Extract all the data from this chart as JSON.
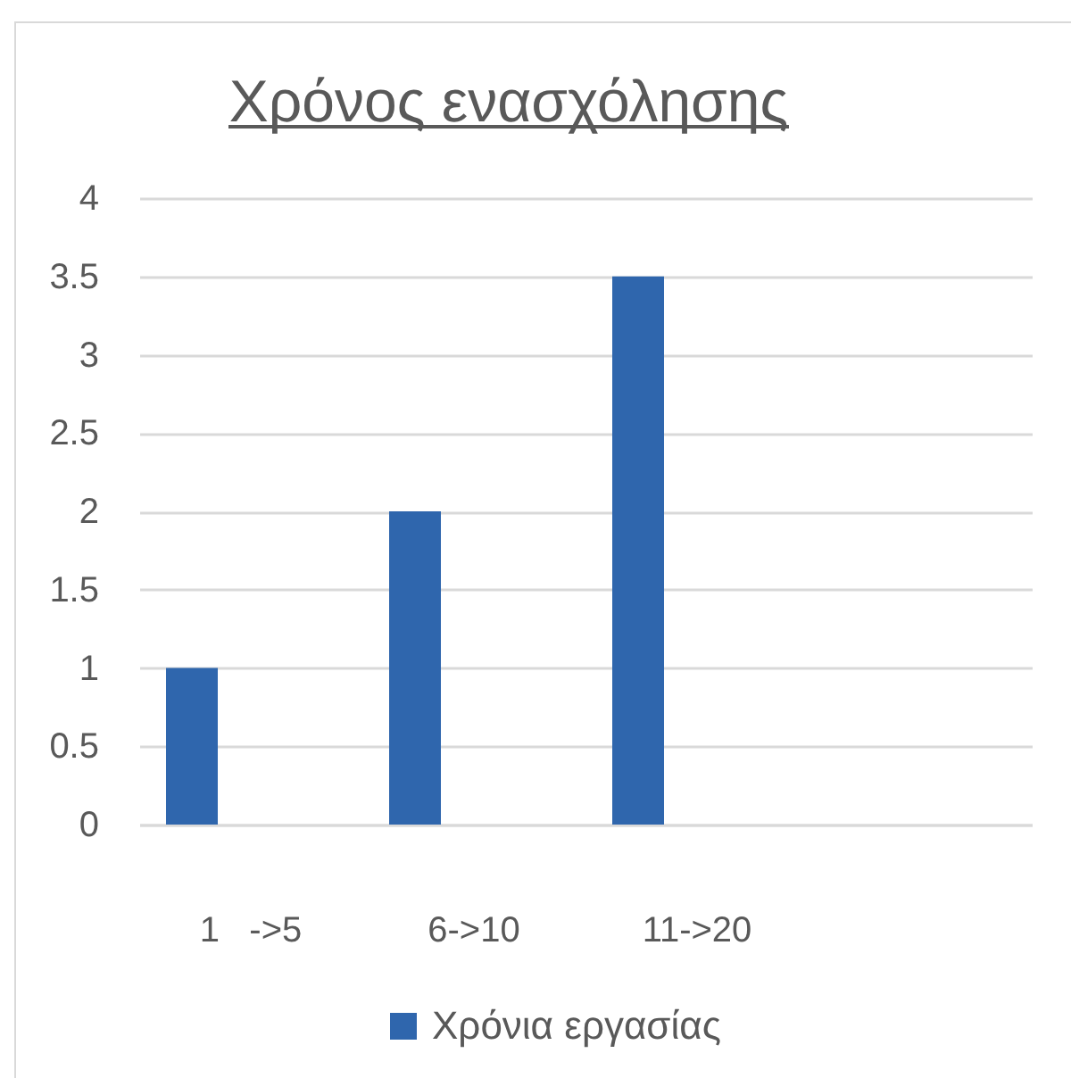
{
  "chart_data": {
    "type": "bar",
    "title": "Χρόνος ενασχόλησης",
    "categories": [
      "1   ->5",
      "6->10",
      "11->20",
      null
    ],
    "series": [
      {
        "name": "Χρόνια εργασίας",
        "color": "#2f66ad",
        "values": [
          1,
          2,
          3.5,
          null
        ]
      }
    ],
    "ylim": [
      0,
      4
    ],
    "yticks": [
      0,
      0.5,
      1,
      1.5,
      2,
      2.5,
      3,
      3.5,
      4
    ],
    "grid": "y",
    "legend": "bottom"
  }
}
